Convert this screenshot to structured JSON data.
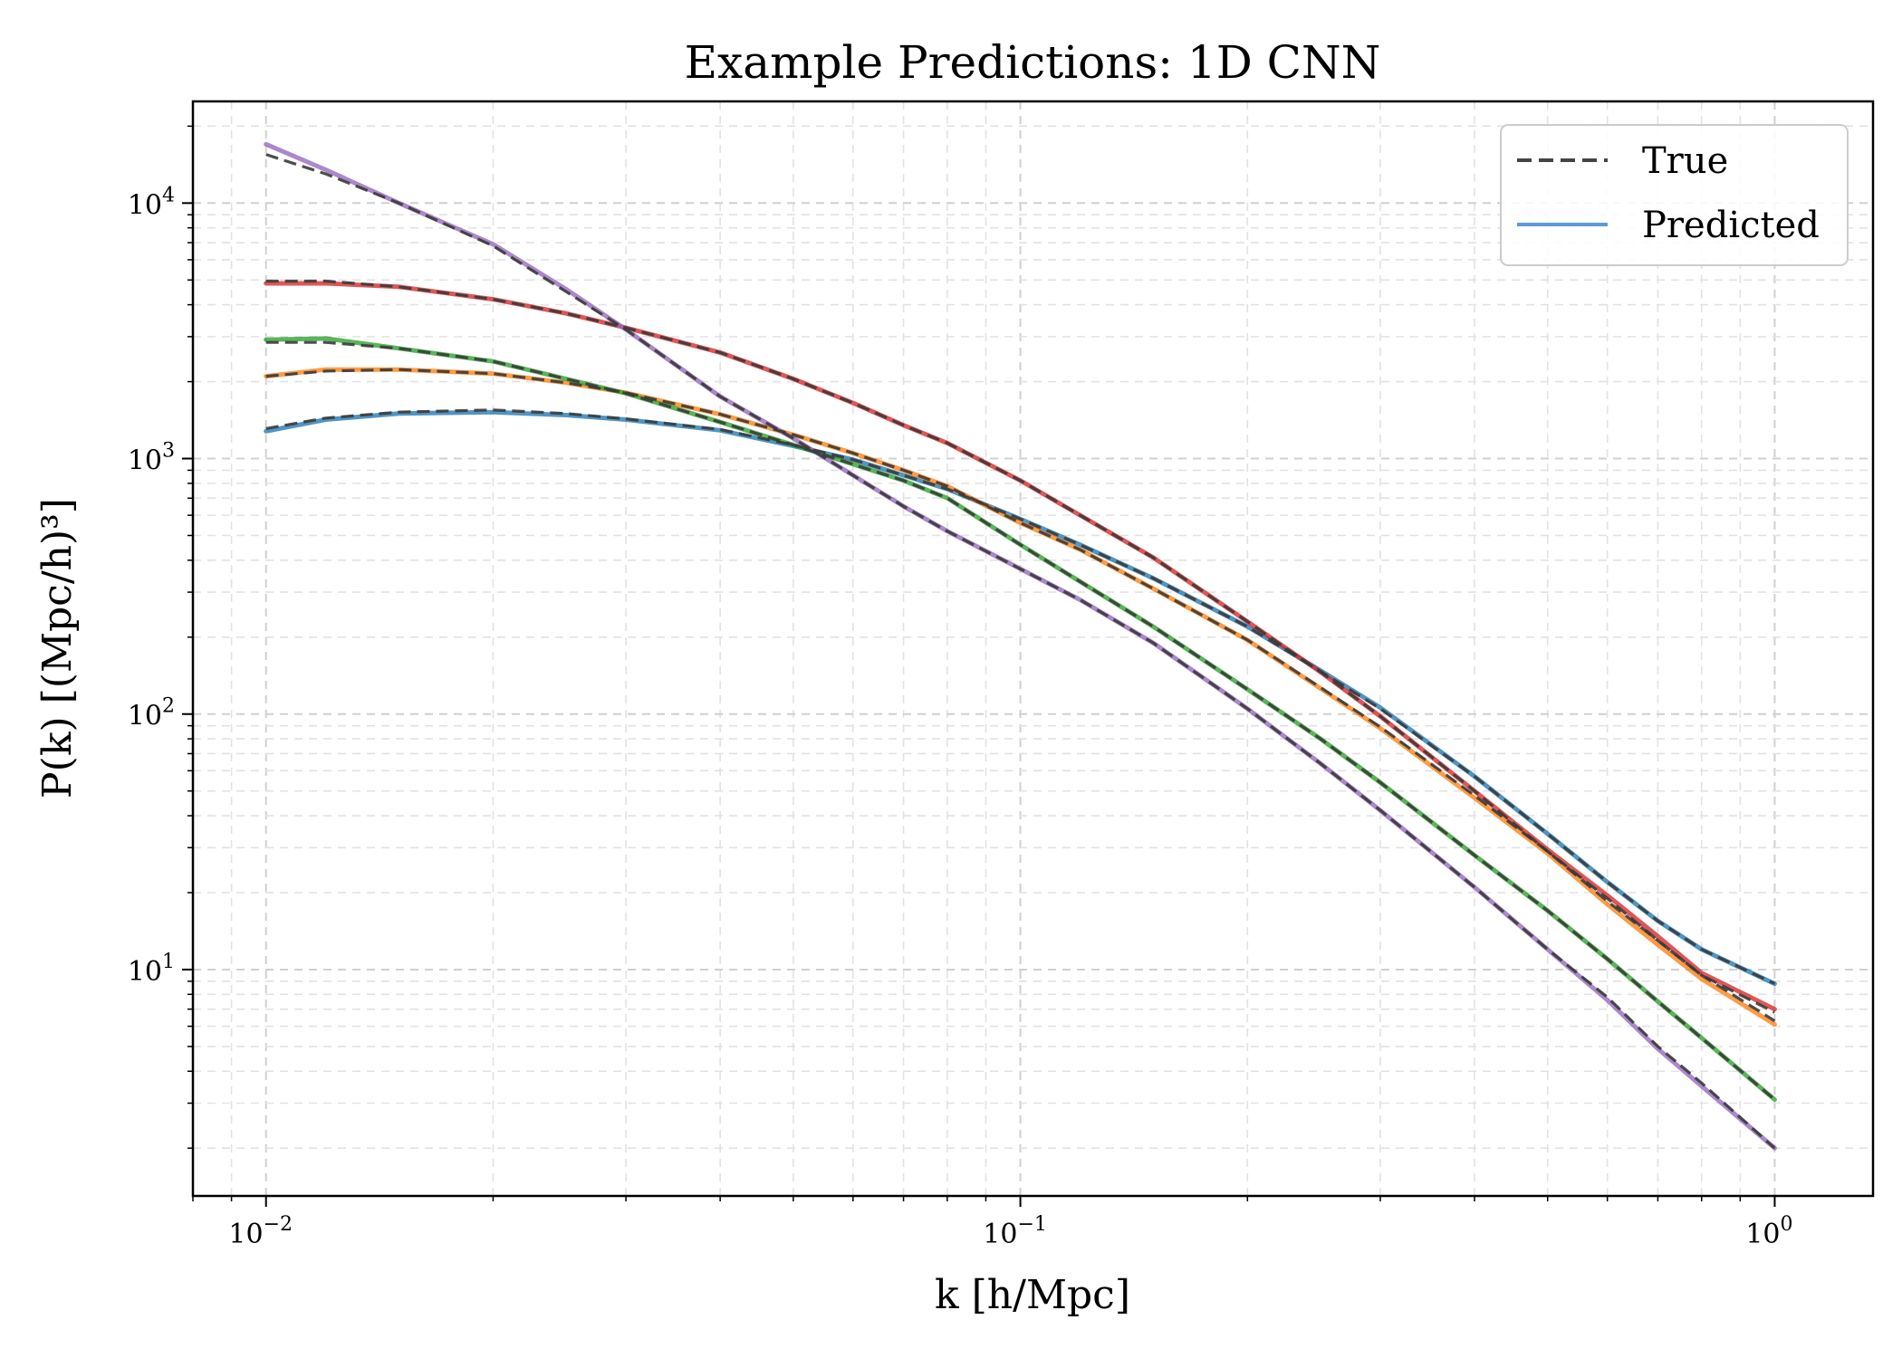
{
  "chart_data": {
    "type": "line",
    "title": "Example Predictions: 1D CNN",
    "xlabel": "k [h/Mpc]",
    "ylabel": "P(k) [(Mpc/h)³]",
    "xscale": "log",
    "yscale": "log",
    "xlim": [
      0.008,
      1.35
    ],
    "ylim": [
      1.3,
      25000
    ],
    "grid": true,
    "grid_minor": true,
    "legend_position": "top-right",
    "legend": [
      {
        "label": "True",
        "style": "dashed",
        "color": "#444444"
      },
      {
        "label": "Predicted",
        "style": "solid",
        "color": "#5b9bd5"
      }
    ],
    "x_ticks": [
      {
        "base": "10",
        "exp": "−2",
        "value": 0.01
      },
      {
        "base": "10",
        "exp": "−1",
        "value": 0.1
      },
      {
        "base": "10",
        "exp": "0",
        "value": 1
      }
    ],
    "y_ticks": [
      {
        "base": "10",
        "exp": "1",
        "value": 10
      },
      {
        "base": "10",
        "exp": "2",
        "value": 100
      },
      {
        "base": "10",
        "exp": "3",
        "value": 1000
      },
      {
        "base": "10",
        "exp": "4",
        "value": 10000
      }
    ],
    "x": [
      0.01,
      0.012,
      0.015,
      0.02,
      0.025,
      0.03,
      0.04,
      0.05,
      0.06,
      0.07,
      0.08,
      0.1,
      0.12,
      0.15,
      0.2,
      0.25,
      0.3,
      0.4,
      0.5,
      0.6,
      0.7,
      0.8,
      1.0
    ],
    "series": [
      {
        "color": "#1f77b4",
        "true": [
          1310,
          1440,
          1520,
          1550,
          1500,
          1430,
          1300,
          1130,
          990,
          860,
          760,
          580,
          460,
          340,
          220,
          147,
          105,
          57,
          34,
          22,
          15.5,
          12,
          8.8
        ],
        "pred": [
          1280,
          1420,
          1500,
          1520,
          1480,
          1420,
          1290,
          1120,
          990,
          860,
          760,
          580,
          460,
          340,
          220,
          148,
          106,
          57,
          34,
          22,
          15.5,
          12,
          8.8
        ]
      },
      {
        "color": "#ff7f0e",
        "true": [
          2100,
          2200,
          2230,
          2150,
          1980,
          1810,
          1490,
          1240,
          1050,
          900,
          780,
          560,
          440,
          310,
          195,
          127,
          89,
          48,
          29,
          18.5,
          13,
          9.5,
          6.3
        ],
        "pred": [
          2100,
          2230,
          2230,
          2150,
          1980,
          1810,
          1490,
          1240,
          1050,
          900,
          780,
          560,
          440,
          310,
          195,
          126,
          88,
          47,
          28.5,
          18,
          12.5,
          9.2,
          6.1
        ]
      },
      {
        "color": "#2ca02c",
        "true": [
          2850,
          2850,
          2700,
          2400,
          2050,
          1800,
          1390,
          1130,
          950,
          820,
          700,
          460,
          330,
          220,
          125,
          80,
          54,
          28,
          17,
          11,
          7.5,
          5.4,
          3.1
        ],
        "pred": [
          2920,
          2950,
          2700,
          2400,
          2050,
          1800,
          1390,
          1130,
          950,
          820,
          700,
          460,
          330,
          220,
          125,
          80,
          54,
          28,
          17,
          11,
          7.5,
          5.4,
          3.1
        ]
      },
      {
        "color": "#d62728",
        "true": [
          4950,
          4950,
          4700,
          4200,
          3700,
          3250,
          2600,
          2050,
          1650,
          1350,
          1150,
          820,
          600,
          410,
          230,
          146,
          98,
          50,
          29,
          19,
          13,
          9.5,
          6.8
        ],
        "pred": [
          4850,
          4850,
          4700,
          4200,
          3700,
          3250,
          2600,
          2050,
          1650,
          1350,
          1150,
          820,
          600,
          410,
          230,
          146,
          98,
          50,
          29.5,
          19.5,
          13.5,
          9.7,
          7.0
        ]
      },
      {
        "color": "#9467bd",
        "true": [
          15500,
          13000,
          10000,
          6800,
          4500,
          3200,
          1750,
          1200,
          860,
          650,
          520,
          370,
          280,
          190,
          105,
          64,
          42,
          21,
          12,
          7.8,
          5.0,
          3.6,
          2.0
        ],
        "pred": [
          17000,
          13500,
          10000,
          6900,
          4600,
          3200,
          1750,
          1200,
          860,
          650,
          520,
          370,
          280,
          190,
          105,
          64,
          42,
          21,
          12,
          7.6,
          4.9,
          3.5,
          2.0
        ]
      }
    ]
  }
}
